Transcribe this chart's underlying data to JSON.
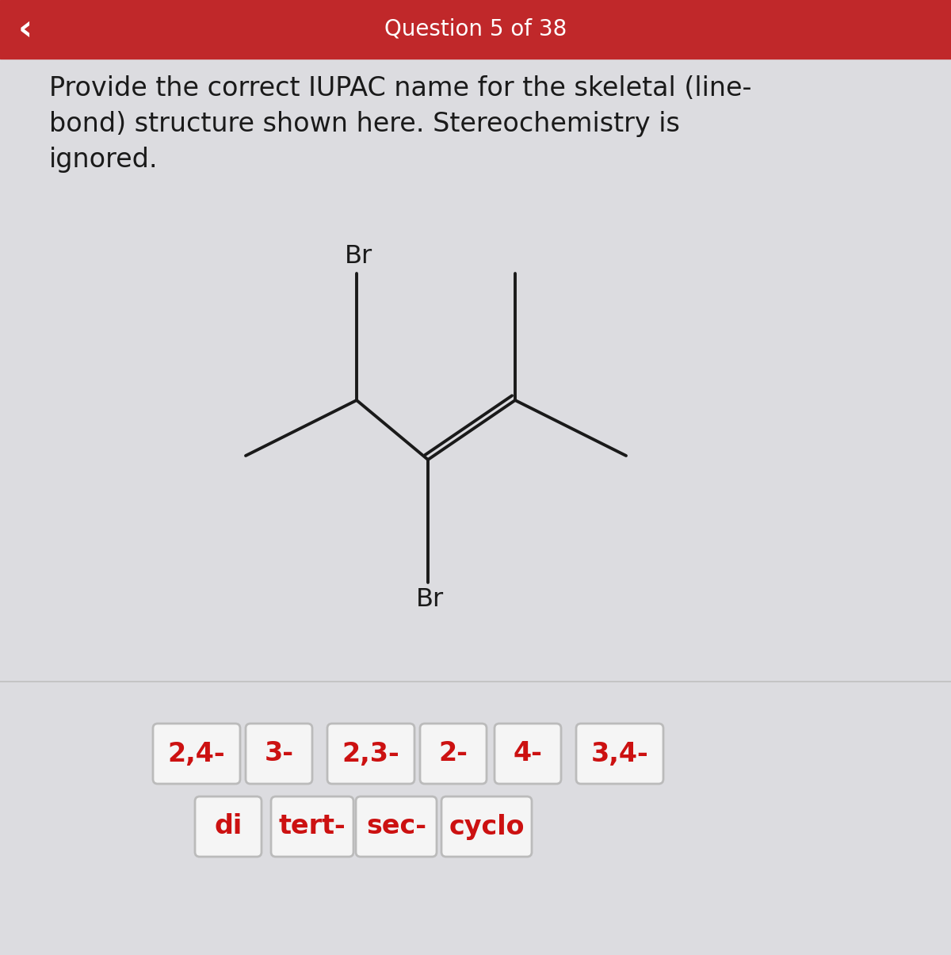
{
  "header_text": "Question 5 of 38",
  "header_bg": "#c0282a",
  "header_text_color": "#ffffff",
  "bg_color": "#dcdce0",
  "question_text_line1": "Provide the correct IUPAC name for the skeletal (line-",
  "question_text_line2": "bond) structure shown here. Stereochemistry is",
  "question_text_line3": "ignored.",
  "question_fontsize": 24,
  "question_color": "#1a1a1a",
  "molecule_color": "#1a1a1a",
  "br_color": "#1a1a1a",
  "row1_labels": [
    "2,4-",
    "3-",
    "2,3-",
    "2-",
    "4-",
    "3,4-"
  ],
  "row2_labels": [
    "di",
    "tert-",
    "sec-",
    "cyclo"
  ],
  "pill_bg": "#f5f5f5",
  "pill_border": "#bbbbbb",
  "pill_text_color": "#cc1111",
  "pill_fontsize": 24,
  "highlighted_pills_row1": [],
  "highlighted_pills_row2": [],
  "highlight_color": "#cce8e8"
}
